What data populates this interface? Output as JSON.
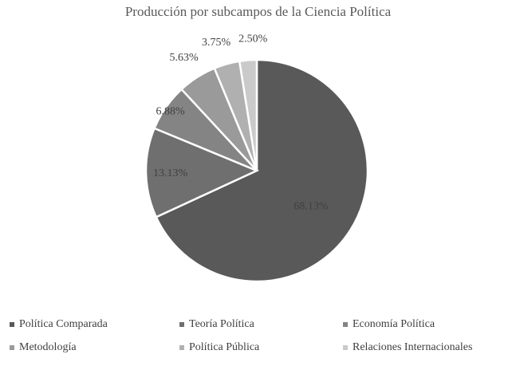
{
  "chart_data": {
    "type": "pie",
    "title": "Producción por subcampos de la Ciencia Política",
    "slices": [
      {
        "name": "Política Comparada",
        "value": 68.13,
        "label": "68.13%",
        "color": "#595959"
      },
      {
        "name": "Teoría Política",
        "value": 13.13,
        "label": "13.13%",
        "color": "#6f6f6f"
      },
      {
        "name": "Economía Política",
        "value": 6.88,
        "label": "6.88%",
        "color": "#848484"
      },
      {
        "name": "Metodología",
        "value": 5.63,
        "label": "5.63%",
        "color": "#9a9a9a"
      },
      {
        "name": "Política Pública",
        "value": 3.75,
        "label": "3.75%",
        "color": "#b0b0b0"
      },
      {
        "name": "Relaciones Internacionales",
        "value": 2.5,
        "label": "2.50%",
        "color": "#cacaca"
      }
    ],
    "legend_position": "bottom"
  }
}
